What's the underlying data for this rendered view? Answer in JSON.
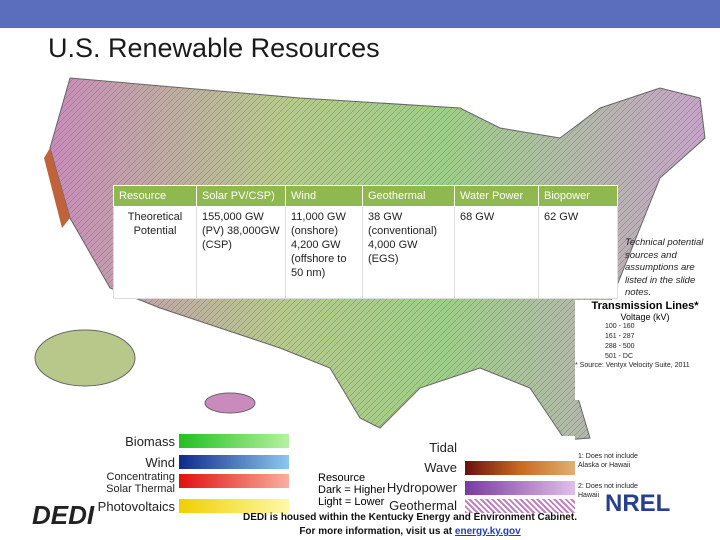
{
  "header": {
    "title": "U.S. Renewable Resources"
  },
  "table": {
    "columns": [
      "Resource",
      "Solar PV/CSP)",
      "Wind",
      "Geothermal",
      "Water Power",
      "Biopower"
    ],
    "rows": [
      [
        "Theoretical Potential",
        "155,000 GW (PV) 38,000GW (CSP)",
        "11,000 GW (onshore) 4,200 GW (offshore to 50 nm)",
        "38 GW (conventional) 4,000 GW (EGS)",
        "68 GW",
        "62 GW"
      ]
    ]
  },
  "note": "Technical potential sources and assumptions are listed in the slide notes.",
  "map_legend": {
    "transmission": {
      "title": "Transmission Lines*",
      "subtitle": "Voltage (kV)",
      "items": [
        "100 - 160",
        "161 - 287",
        "288 - 500",
        "501 - DC"
      ],
      "source": "* Source: Ventyx Velocity Suite, 2011"
    },
    "resources": [
      "Biomass",
      "Wind",
      "Concentrating Solar Thermal",
      "Photovoltaics"
    ],
    "resource_note": [
      "Resource",
      "Dark = Higher",
      "Light = Lower"
    ],
    "water": [
      "Tidal",
      "Wave",
      "Hydropower",
      "Geothermal"
    ],
    "footnotes": [
      "1: Does not include Alaska or Hawaii",
      "2: Does not include Hawaii"
    ]
  },
  "footer": {
    "line1": "DEDI is housed within the Kentucky Energy and Environment Cabinet.",
    "line2": "For more information, visit us at",
    "link": "energy.ky.gov"
  },
  "logos": {
    "dedi": "DEDI",
    "nrel": "NREL"
  }
}
